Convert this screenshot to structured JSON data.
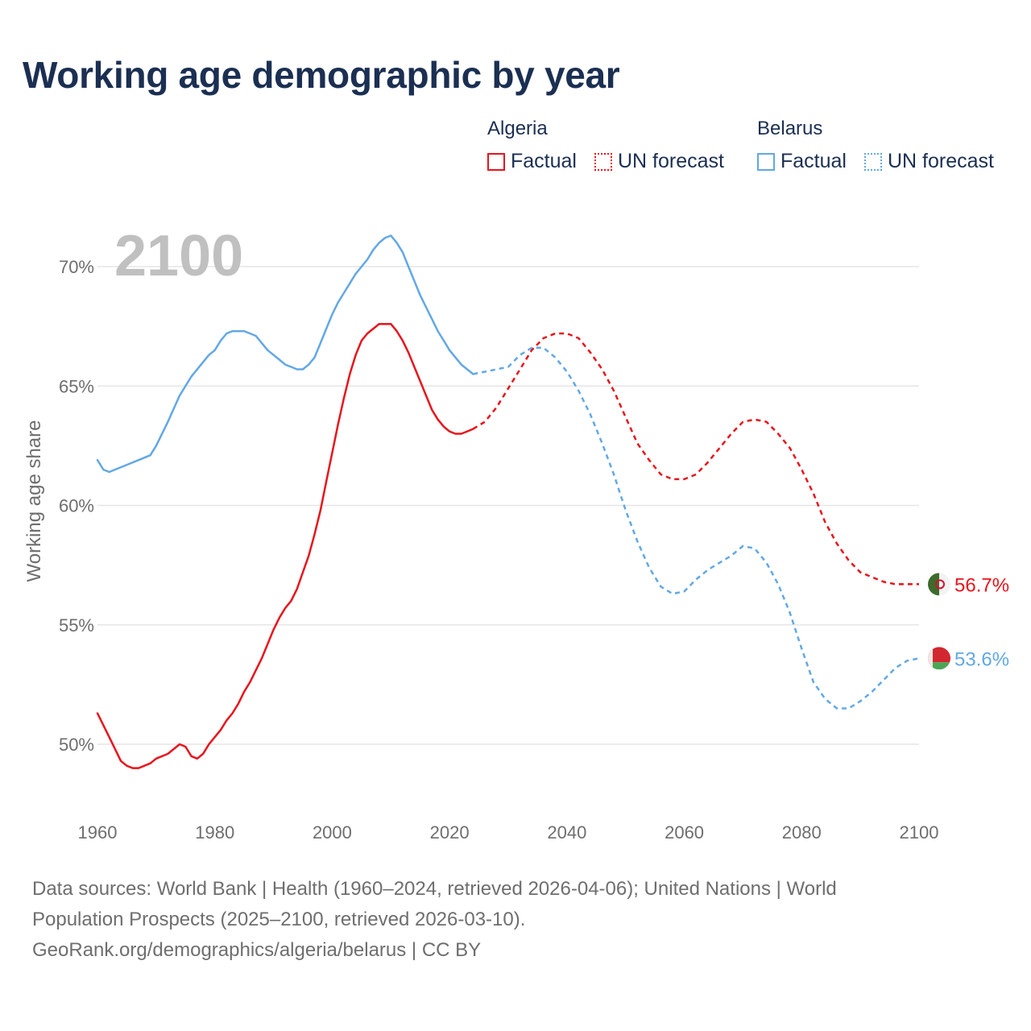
{
  "title": "Working age demographic by year",
  "legend": {
    "groups": [
      {
        "name": "Algeria",
        "color": "#e8141c",
        "factual_label": "Factual",
        "forecast_label": "UN forecast"
      },
      {
        "name": "Belarus",
        "color": "#62a8e5",
        "factual_label": "Factual",
        "forecast_label": "UN forecast"
      }
    ]
  },
  "footer": {
    "line1": "Data sources: World Bank | Health (1960–2024, retrieved 2026-04-06); United Nations | World",
    "line2": "Population Prospects (2025–2100, retrieved 2026-03-10).",
    "line3": "GeoRank.org/demographics/algeria/belarus | CC BY"
  },
  "chart_data": {
    "type": "line",
    "title": "Working age demographic by year",
    "year_watermark": "2100",
    "ylabel": "Working age share",
    "xlabel": "",
    "xlim": [
      1960,
      2100
    ],
    "ylim": [
      47.0,
      72.0
    ],
    "x_ticks": [
      1960,
      1980,
      2000,
      2020,
      2040,
      2060,
      2080,
      2100
    ],
    "y_ticks": [
      50,
      55,
      60,
      65,
      70
    ],
    "y_tick_labels": [
      "50%",
      "55%",
      "60%",
      "65%",
      "70%"
    ],
    "grid": true,
    "series": [
      {
        "name": "Algeria",
        "color": "#e8141c",
        "end_label": "56.7%",
        "factual": {
          "x": [
            1960,
            1962,
            1964,
            1965,
            1966,
            1967,
            1968,
            1969,
            1970,
            1972,
            1974,
            1975,
            1976,
            1977,
            1978,
            1979,
            1980,
            1981,
            1982,
            1983,
            1984,
            1985,
            1986,
            1987,
            1988,
            1989,
            1990,
            1991,
            1992,
            1993,
            1994,
            1995,
            1996,
            1997,
            1998,
            1999,
            2000,
            2001,
            2002,
            2003,
            2004,
            2005,
            2006,
            2007,
            2008,
            2009,
            2010,
            2011,
            2012,
            2013,
            2014,
            2015,
            2016,
            2017,
            2018,
            2019,
            2020,
            2021,
            2022,
            2023,
            2024
          ],
          "y": [
            51.3,
            50.3,
            49.3,
            49.1,
            49.0,
            49.0,
            49.1,
            49.2,
            49.4,
            49.6,
            50.0,
            49.9,
            49.5,
            49.4,
            49.6,
            50.0,
            50.3,
            50.6,
            51.0,
            51.3,
            51.7,
            52.2,
            52.6,
            53.1,
            53.6,
            54.2,
            54.8,
            55.3,
            55.7,
            56.0,
            56.5,
            57.2,
            57.9,
            58.8,
            59.8,
            61.0,
            62.2,
            63.4,
            64.5,
            65.5,
            66.3,
            66.9,
            67.2,
            67.4,
            67.6,
            67.6,
            67.6,
            67.3,
            66.9,
            66.4,
            65.8,
            65.2,
            64.6,
            64.0,
            63.6,
            63.3,
            63.1,
            63.0,
            63.0,
            63.1,
            63.2
          ]
        },
        "forecast": {
          "x": [
            2024,
            2026,
            2028,
            2030,
            2032,
            2034,
            2036,
            2038,
            2040,
            2042,
            2044,
            2046,
            2048,
            2050,
            2052,
            2054,
            2056,
            2058,
            2060,
            2062,
            2064,
            2066,
            2068,
            2070,
            2072,
            2074,
            2076,
            2078,
            2080,
            2082,
            2084,
            2086,
            2088,
            2090,
            2092,
            2094,
            2096,
            2098,
            2100
          ],
          "y": [
            63.2,
            63.5,
            64.1,
            64.9,
            65.7,
            66.5,
            67.0,
            67.2,
            67.2,
            67.0,
            66.4,
            65.7,
            64.8,
            63.7,
            62.6,
            61.9,
            61.3,
            61.1,
            61.1,
            61.3,
            61.8,
            62.4,
            63.0,
            63.5,
            63.6,
            63.5,
            63.0,
            62.4,
            61.5,
            60.5,
            59.3,
            58.4,
            57.7,
            57.2,
            57.0,
            56.8,
            56.7,
            56.7,
            56.7
          ]
        }
      },
      {
        "name": "Belarus",
        "color": "#62a8e5",
        "end_label": "53.6%",
        "factual": {
          "x": [
            1960,
            1961,
            1962,
            1963,
            1965,
            1967,
            1969,
            1970,
            1972,
            1974,
            1976,
            1978,
            1979,
            1980,
            1981,
            1982,
            1983,
            1984,
            1985,
            1986,
            1987,
            1988,
            1989,
            1990,
            1991,
            1992,
            1993,
            1994,
            1995,
            1996,
            1997,
            1998,
            1999,
            2000,
            2001,
            2002,
            2003,
            2004,
            2005,
            2006,
            2007,
            2008,
            2009,
            2010,
            2011,
            2012,
            2013,
            2014,
            2015,
            2016,
            2017,
            2018,
            2019,
            2020,
            2021,
            2022,
            2023,
            2024
          ],
          "y": [
            61.9,
            61.5,
            61.4,
            61.5,
            61.7,
            61.9,
            62.1,
            62.5,
            63.5,
            64.6,
            65.4,
            66.0,
            66.3,
            66.5,
            66.9,
            67.2,
            67.3,
            67.3,
            67.3,
            67.2,
            67.1,
            66.8,
            66.5,
            66.3,
            66.1,
            65.9,
            65.8,
            65.7,
            65.7,
            65.9,
            66.2,
            66.8,
            67.4,
            68.0,
            68.5,
            68.9,
            69.3,
            69.7,
            70.0,
            70.3,
            70.7,
            71.0,
            71.2,
            71.3,
            71.0,
            70.6,
            70.0,
            69.4,
            68.8,
            68.3,
            67.8,
            67.3,
            66.9,
            66.5,
            66.2,
            65.9,
            65.7,
            65.5
          ]
        },
        "forecast": {
          "x": [
            2024,
            2026,
            2028,
            2030,
            2032,
            2034,
            2036,
            2038,
            2040,
            2042,
            2044,
            2046,
            2048,
            2050,
            2052,
            2054,
            2056,
            2058,
            2060,
            2062,
            2064,
            2066,
            2068,
            2070,
            2072,
            2074,
            2076,
            2078,
            2080,
            2082,
            2084,
            2086,
            2088,
            2090,
            2092,
            2094,
            2096,
            2098,
            2100
          ],
          "y": [
            65.5,
            65.6,
            65.7,
            65.8,
            66.3,
            66.6,
            66.6,
            66.2,
            65.6,
            64.8,
            63.8,
            62.6,
            61.3,
            59.8,
            58.5,
            57.4,
            56.6,
            56.3,
            56.4,
            56.9,
            57.3,
            57.6,
            57.9,
            58.3,
            58.2,
            57.6,
            56.7,
            55.5,
            54.0,
            52.6,
            51.9,
            51.5,
            51.5,
            51.8,
            52.2,
            52.7,
            53.2,
            53.5,
            53.6
          ]
        }
      }
    ]
  }
}
